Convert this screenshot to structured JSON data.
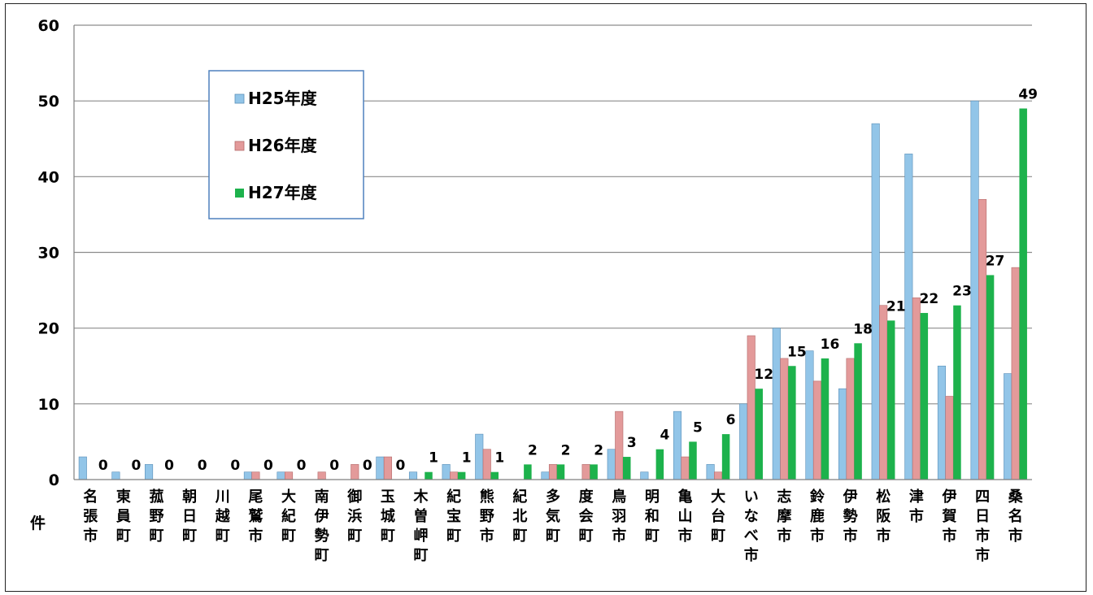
{
  "chart_data": {
    "type": "bar",
    "title": "",
    "xlabel": "",
    "ylabel": "件",
    "ylim": [
      0,
      60
    ],
    "yticks": [
      "0",
      "10",
      "20",
      "30",
      "40",
      "50",
      "60"
    ],
    "grid": true,
    "legend_position": "top-left",
    "categories": [
      "名張市",
      "東員町",
      "菰野町",
      "朝日町",
      "川越町",
      "尾鷲市",
      "大紀町",
      "南伊勢町",
      "御浜町",
      "玉城町",
      "木曽岬町",
      "紀宝町",
      "熊野市",
      "紀北町",
      "多気町",
      "度会町",
      "鳥羽市",
      "明和町",
      "亀山市",
      "大台町",
      "いなべ市",
      "志摩市",
      "鈴鹿市",
      "伊勢市",
      "松阪市",
      "津市",
      "伊賀市",
      "四日市市",
      "桑名市"
    ],
    "series": [
      {
        "name": "H25年度",
        "color": "#92c5e8",
        "values": [
          3,
          1,
          2,
          0,
          0,
          1,
          1,
          0,
          0,
          3,
          1,
          2,
          6,
          0,
          1,
          0,
          4,
          1,
          9,
          2,
          10,
          20,
          17,
          12,
          47,
          43,
          15,
          50,
          14
        ]
      },
      {
        "name": "H26年度",
        "color": "#e39a9a",
        "values": [
          0,
          0,
          0,
          0,
          0,
          1,
          1,
          1,
          2,
          3,
          0,
          1,
          4,
          0,
          2,
          2,
          9,
          0,
          3,
          1,
          19,
          16,
          13,
          16,
          23,
          24,
          11,
          37,
          28
        ]
      },
      {
        "name": "H27年度",
        "color": "#1db24c",
        "values": [
          0,
          0,
          0,
          0,
          0,
          0,
          0,
          0,
          0,
          0,
          1,
          1,
          1,
          2,
          2,
          2,
          3,
          4,
          5,
          6,
          12,
          15,
          16,
          18,
          21,
          22,
          23,
          27,
          49
        ]
      }
    ],
    "data_labels": [
      "0",
      "0",
      "0",
      "0",
      "0",
      "0",
      "0",
      "0",
      "0",
      "0",
      "1",
      "1",
      "1",
      "2",
      "2",
      "2",
      "3",
      "4",
      "5",
      "6",
      "12",
      "15",
      "16",
      "18",
      "21",
      "22",
      "23",
      "27",
      "49"
    ]
  }
}
